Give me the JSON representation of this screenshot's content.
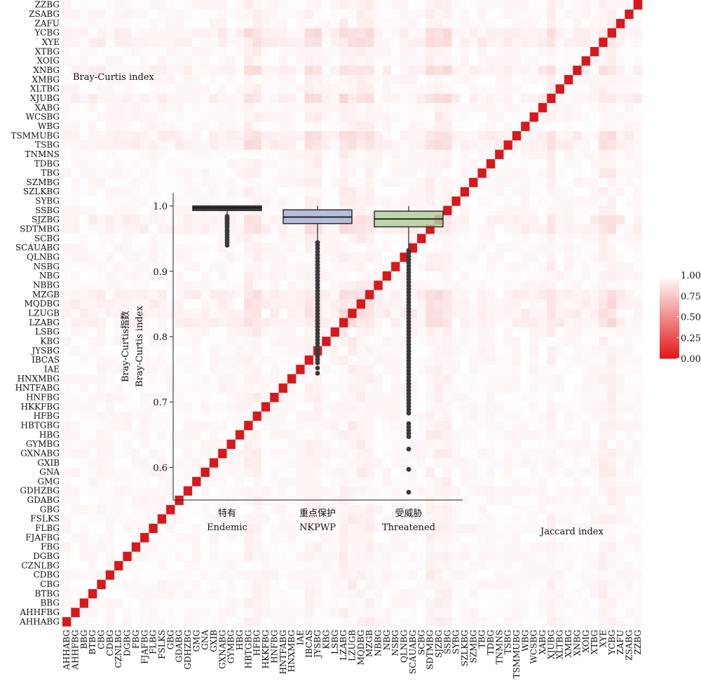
{
  "gardens": [
    "AHHABG",
    "AHHFBG",
    "BBG",
    "BTBG",
    "CBG",
    "CDBG",
    "CZNLBG",
    "DGBG",
    "FBG",
    "FJAFBG",
    "FLBG",
    "FSLKS",
    "GBG",
    "GDABG",
    "GDHZBG",
    "GMG",
    "GNA",
    "GXIB",
    "GXNABG",
    "GYMBG",
    "HBG",
    "HBTGBG",
    "HFBG",
    "HKKFBG",
    "HNFBG",
    "HNTFABG",
    "HNXMBG",
    "IAE",
    "IBCAS",
    "JYSBG",
    "KBG",
    "LSBG",
    "LZABG",
    "LZUGB",
    "MQDBG",
    "MZGB",
    "NBBG",
    "NBG",
    "NSBG",
    "QLNBG",
    "SCAUABG",
    "SCBG",
    "SDTMBG",
    "SJZBG",
    "SSBG",
    "SYBG",
    "SZLKBG",
    "SZMBG",
    "TBG",
    "TDBG",
    "TNMNS",
    "TSBG",
    "TSMMUBG",
    "WBG",
    "WCSBG",
    "XABG",
    "XJUBG",
    "XLTBG",
    "XMBG",
    "XNBG",
    "XOIG",
    "XTBG",
    "XYE",
    "YCBG",
    "ZAFU",
    "ZSABG",
    "ZZBG"
  ],
  "labels": {
    "bray_curtis_corner": "Bray-Curtis index",
    "jaccard_corner": "Jaccard index"
  },
  "colors": {
    "diagonal": "#d7191c",
    "scale_high": "#ffffff",
    "scale_low": "#e31a1c",
    "box_endemic": "#333333",
    "box_nkpwp": "#a8b4d8",
    "box_threatened": "#b4cf9c"
  },
  "chart_data": [
    {
      "type": "heatmap",
      "title": "",
      "rows": "gardens (bottom to top: AHHABG ... ZZBG)",
      "columns": "gardens (left to right: AHHABG ... ZZBG)",
      "upper_triangle_metric": "Bray-Curtis index",
      "lower_triangle_metric": "Jaccard index",
      "diagonal_value": 0,
      "value_range": [
        0,
        1
      ],
      "typical_offdiagonal_range": [
        0.7,
        1.0
      ],
      "darker_columns": [
        "LZABG",
        "LZUGB",
        "MZGB",
        "SJZBG",
        "SSBG",
        "YCBG",
        "XYE",
        "XJUBG",
        "MQDBG",
        "HBTGBG",
        "HFBG",
        "JYSBG",
        "IBCAS",
        "SDTMBG"
      ],
      "darker_rows": [
        "SJZBG",
        "SDTMBG",
        "LZUGB",
        "LZABG",
        "MZGB",
        "MQDBG",
        "TSBG",
        "TSMMUBG",
        "XJUBG",
        "XNBG",
        "YCBG",
        "XYE"
      ],
      "legend": {
        "ticks": [
          1.0,
          0.75,
          0.5,
          0.25,
          0.0
        ]
      }
    },
    {
      "type": "box",
      "xlabel": "",
      "ylabel_lines": [
        "Bray-Curtis指数",
        "Bray-Curtis index"
      ],
      "ylim": [
        0.55,
        1.02
      ],
      "yticks": [
        0.6,
        0.7,
        0.8,
        0.9,
        1.0
      ],
      "categories": [
        {
          "label_cn": "特有",
          "label_en": "Endemic",
          "q1": 0.993,
          "median": 0.997,
          "q3": 1.0,
          "whisker_low": 0.986,
          "whisker_high": 1.0,
          "outliers": [
            0.984,
            0.982,
            0.98,
            0.978,
            0.975,
            0.973,
            0.97,
            0.967,
            0.963,
            0.96,
            0.956,
            0.952,
            0.948,
            0.944,
            0.94
          ]
        },
        {
          "label_cn": "重点保护",
          "label_en": "NKPWP",
          "q1": 0.973,
          "median": 0.983,
          "q3": 0.994,
          "whisker_low": 0.946,
          "whisker_high": 1.0,
          "outliers": [
            0.944,
            0.94,
            0.935,
            0.93,
            0.925,
            0.92,
            0.915,
            0.91,
            0.905,
            0.9,
            0.895,
            0.89,
            0.885,
            0.88,
            0.875,
            0.87,
            0.865,
            0.86,
            0.855,
            0.85,
            0.845,
            0.84,
            0.835,
            0.83,
            0.825,
            0.82,
            0.815,
            0.81,
            0.805,
            0.8,
            0.795,
            0.79,
            0.785,
            0.78,
            0.775,
            0.77,
            0.765,
            0.76,
            0.752,
            0.744
          ]
        },
        {
          "label_cn": "受威胁",
          "label_en": "Threatened",
          "q1": 0.968,
          "median": 0.98,
          "q3": 0.992,
          "whisker_low": 0.935,
          "whisker_high": 1.0,
          "outliers": [
            0.932,
            0.928,
            0.923,
            0.918,
            0.913,
            0.908,
            0.903,
            0.898,
            0.893,
            0.888,
            0.883,
            0.878,
            0.873,
            0.868,
            0.863,
            0.858,
            0.853,
            0.848,
            0.843,
            0.838,
            0.833,
            0.828,
            0.823,
            0.818,
            0.813,
            0.808,
            0.803,
            0.798,
            0.793,
            0.788,
            0.783,
            0.778,
            0.773,
            0.768,
            0.763,
            0.758,
            0.753,
            0.748,
            0.743,
            0.738,
            0.733,
            0.728,
            0.723,
            0.718,
            0.713,
            0.708,
            0.703,
            0.698,
            0.693,
            0.688,
            0.683,
            0.667,
            0.662,
            0.657,
            0.652,
            0.647,
            0.628,
            0.597,
            0.562
          ]
        }
      ]
    }
  ]
}
